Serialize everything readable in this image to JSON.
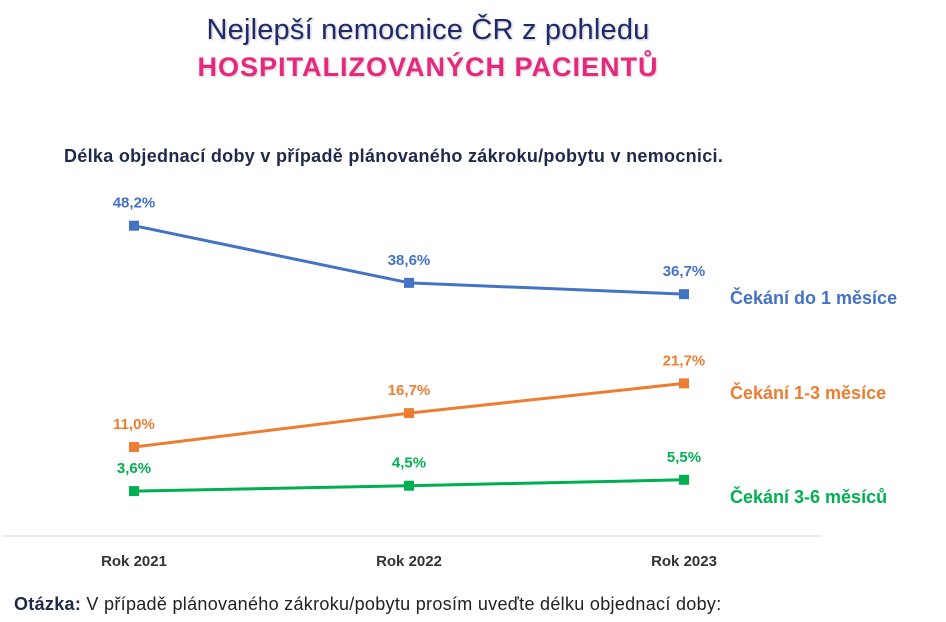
{
  "header": {
    "title_line1": "Nejlepší  nemocnice ČR z pohledu",
    "title_line2": "HOSPITALIZOVANÝCH  PACIENTŮ",
    "title_line2_color": "#e6287e"
  },
  "footer": {
    "question_label": "Otázka:",
    "question_text": " V případě  plánovaného  zákroku/pobytu  prosím  uveďte  délku  objednací  doby:"
  },
  "chart_data": {
    "type": "line",
    "title": "Délka objednací doby v případě plánovaného zákroku/pobytu v nemocnici.",
    "categories": [
      "Rok 2021",
      "Rok 2022",
      "Rok 2023"
    ],
    "ylim": [
      0,
      50
    ],
    "grid": false,
    "legend": "right",
    "series": [
      {
        "name": "Čekání do 1 měsíce",
        "values": [
          48.2,
          38.6,
          36.7
        ],
        "labels": [
          "48,2%",
          "38,6%",
          "36,7%"
        ],
        "color": "#4472c4"
      },
      {
        "name": "Čekání 1-3 měsíce",
        "values": [
          11.0,
          16.7,
          21.7
        ],
        "labels": [
          "11,0%",
          "16,7%",
          "21,7%"
        ],
        "color": "#ed7d31"
      },
      {
        "name": "Čekání 3-6 měsíců",
        "values": [
          3.6,
          4.5,
          5.5
        ],
        "labels": [
          "3,6%",
          "4,5%",
          "5,5%"
        ],
        "color": "#00b050"
      }
    ]
  }
}
